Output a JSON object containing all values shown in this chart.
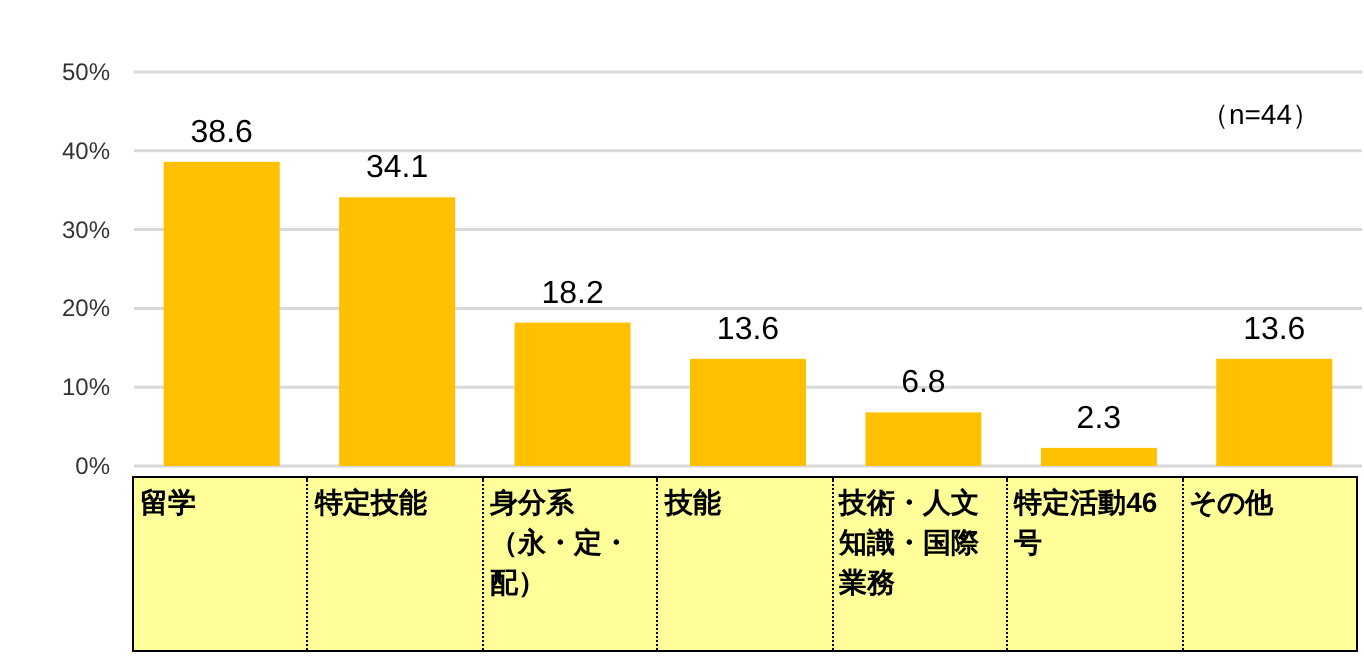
{
  "chart_data": {
    "type": "bar",
    "categories": [
      "留学",
      "特定技能",
      "身分系（永・定・配）",
      "技能",
      "技術・人文知識・国際業務",
      "特定活動46号",
      "その他"
    ],
    "values": [
      38.6,
      34.1,
      18.2,
      13.6,
      6.8,
      2.3,
      13.6
    ],
    "color": "#ffc000",
    "ylim": [
      0,
      50
    ],
    "yticks": [
      {
        "value": 0,
        "label": "0%"
      },
      {
        "value": 10,
        "label": "10%"
      },
      {
        "value": 20,
        "label": "20%"
      },
      {
        "value": 30,
        "label": "30%"
      },
      {
        "value": 40,
        "label": "40%"
      },
      {
        "value": 50,
        "label": "50%"
      }
    ],
    "grid": "y",
    "data_labels": true,
    "annotations": [
      "（n=44）"
    ]
  }
}
